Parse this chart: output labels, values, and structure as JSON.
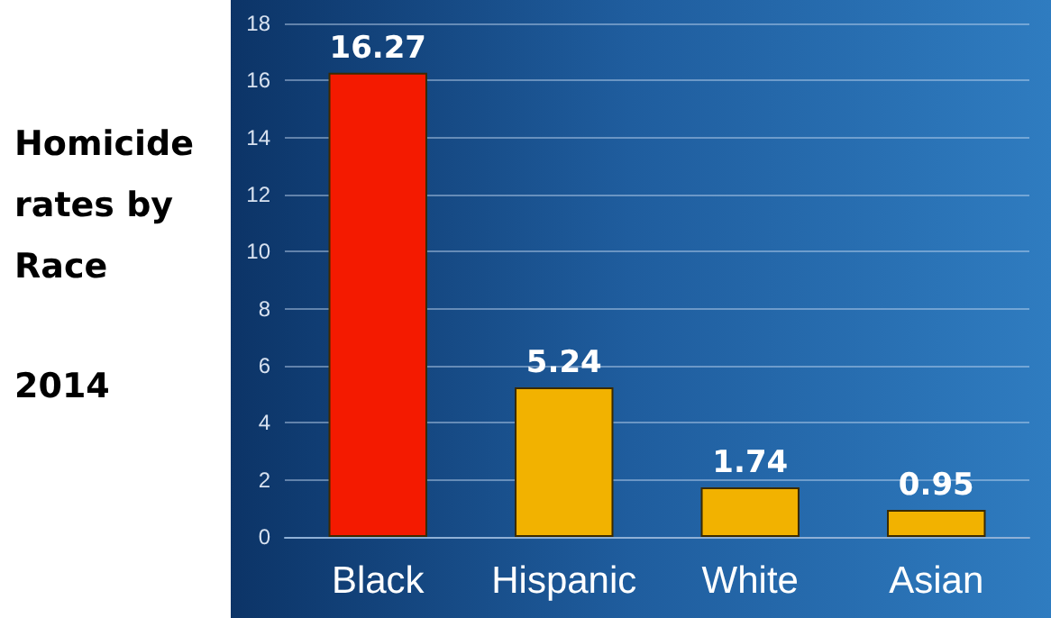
{
  "chart_data": {
    "type": "bar",
    "title": "Homicide rates by Race",
    "subtitle": "2014",
    "categories": [
      "Black",
      "Hispanic",
      "White",
      "Asian"
    ],
    "values": [
      16.27,
      5.24,
      1.74,
      0.95
    ],
    "colors": [
      "#f41a00",
      "#f2b200",
      "#f2b200",
      "#f2b200"
    ],
    "ylim": [
      0,
      18
    ],
    "yticks": [
      0,
      2,
      4,
      6,
      8,
      10,
      12,
      14,
      16,
      18
    ],
    "grid": "y",
    "data_labels": true
  }
}
